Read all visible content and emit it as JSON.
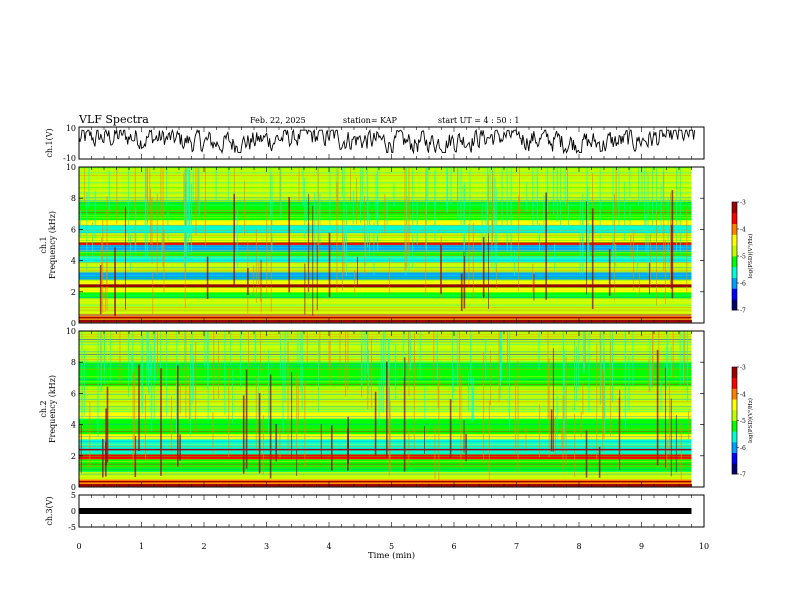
{
  "header": {
    "title": "VLF Spectra",
    "date": "Feb. 22, 2025",
    "station": "station= KAP",
    "start": "start  UT =   4 : 50 : 1"
  },
  "colors": {
    "spectrum_scale": [
      "#000070",
      "#0000ff",
      "#00a0ff",
      "#00ffd0",
      "#00ff00",
      "#c0ff00",
      "#ffff00",
      "#ff8000",
      "#ff0000",
      "#a00000"
    ],
    "trace": "#000000"
  },
  "chart_data": [
    {
      "type": "line",
      "name": "ch1-waveform",
      "ylabel": "ch.1(V)",
      "ylim": [
        -10,
        10
      ],
      "yticks": [
        "10",
        "-10"
      ],
      "xlim": [
        0,
        10
      ],
      "amplitude_range": [
        -6,
        8
      ],
      "description_values": {
        "mean": 1,
        "max": 8,
        "min": -6
      }
    },
    {
      "type": "heatmap",
      "name": "ch1-spectrogram",
      "ylabel": "ch.1\nFrequency (kHz)",
      "ylabel_lines": [
        "ch.1",
        "Frequency (kHz)"
      ],
      "ylim": [
        0,
        10
      ],
      "yticks": [
        "0",
        "2",
        "4",
        "6",
        "8",
        "10"
      ],
      "xlim": [
        0,
        9.8
      ],
      "colorbar": {
        "label": "log(PSD)(V²/Hz)",
        "min": -7,
        "max": -3,
        "ticks": [
          "-3",
          "-4",
          "-5",
          "-6",
          "-7"
        ]
      },
      "bands": [
        {
          "from": 0.0,
          "to": 0.2,
          "level": -3.4
        },
        {
          "from": 0.2,
          "to": 0.6,
          "level": -4.1
        },
        {
          "from": 0.6,
          "to": 1.0,
          "level": -4.9
        },
        {
          "from": 1.0,
          "to": 1.6,
          "level": -5.0
        },
        {
          "from": 1.6,
          "to": 2.0,
          "level": -5.2
        },
        {
          "from": 2.0,
          "to": 2.3,
          "level": -4.3
        },
        {
          "from": 2.3,
          "to": 2.5,
          "level": -3.3
        },
        {
          "from": 2.5,
          "to": 2.8,
          "level": -4.6
        },
        {
          "from": 2.8,
          "to": 3.3,
          "level": -5.9
        },
        {
          "from": 3.3,
          "to": 3.9,
          "level": -5.0
        },
        {
          "from": 3.9,
          "to": 4.3,
          "level": -5.5
        },
        {
          "from": 4.3,
          "to": 4.6,
          "level": -5.1
        },
        {
          "from": 4.6,
          "to": 5.0,
          "level": -6.0
        },
        {
          "from": 5.0,
          "to": 5.2,
          "level": -3.8
        },
        {
          "from": 5.2,
          "to": 5.5,
          "level": -4.6
        },
        {
          "from": 5.5,
          "to": 5.8,
          "level": -5.0
        },
        {
          "from": 5.8,
          "to": 6.3,
          "level": -5.5
        },
        {
          "from": 6.3,
          "to": 6.6,
          "level": -4.6
        },
        {
          "from": 6.6,
          "to": 7.8,
          "level": -5.1
        },
        {
          "from": 7.8,
          "to": 8.2,
          "level": -4.7
        },
        {
          "from": 8.2,
          "to": 9.0,
          "level": -5.0
        },
        {
          "from": 9.0,
          "to": 9.4,
          "level": -4.7
        },
        {
          "from": 9.4,
          "to": 10.0,
          "level": -4.8
        }
      ]
    },
    {
      "type": "heatmap",
      "name": "ch2-spectrogram",
      "ylabel": "ch.2\nFrequency (kHz)",
      "ylabel_lines": [
        "ch.2",
        "Frequency (kHz)"
      ],
      "ylim": [
        0,
        10
      ],
      "yticks": [
        "0",
        "2",
        "4",
        "6",
        "8",
        "10"
      ],
      "xlim": [
        0,
        9.8
      ],
      "colorbar": {
        "label": "log(PSD)(V²/Hz)",
        "min": -7,
        "max": -3,
        "ticks": [
          "-3",
          "-4",
          "-5",
          "-6",
          "-7"
        ]
      },
      "bands": [
        {
          "from": 0.0,
          "to": 0.2,
          "level": -3.4
        },
        {
          "from": 0.2,
          "to": 0.5,
          "level": -4.2
        },
        {
          "from": 0.5,
          "to": 1.0,
          "level": -4.9
        },
        {
          "from": 1.0,
          "to": 1.8,
          "level": -5.1
        },
        {
          "from": 1.8,
          "to": 2.1,
          "level": -3.6
        },
        {
          "from": 2.1,
          "to": 2.7,
          "level": -5.8
        },
        {
          "from": 2.7,
          "to": 3.1,
          "level": -5.5
        },
        {
          "from": 3.1,
          "to": 3.4,
          "level": -4.3
        },
        {
          "from": 3.4,
          "to": 4.4,
          "level": -5.1
        },
        {
          "from": 4.4,
          "to": 4.8,
          "level": -4.5
        },
        {
          "from": 4.8,
          "to": 6.0,
          "level": -5.0
        },
        {
          "from": 6.0,
          "to": 6.5,
          "level": -4.8
        },
        {
          "from": 6.5,
          "to": 8.0,
          "level": -5.1
        },
        {
          "from": 8.0,
          "to": 8.5,
          "level": -4.7
        },
        {
          "from": 8.5,
          "to": 10.0,
          "level": -5.0
        }
      ]
    },
    {
      "type": "line",
      "name": "ch3-waveform",
      "ylabel": "ch.3(V)",
      "ylim": [
        -5,
        5
      ],
      "yticks": [
        "5",
        "0",
        "-5"
      ],
      "xlim": [
        0,
        10
      ],
      "value": 0,
      "xlabel": "Time (min)",
      "xticks": [
        "0",
        "1",
        "2",
        "3",
        "4",
        "5",
        "6",
        "7",
        "8",
        "9",
        "10"
      ]
    }
  ]
}
